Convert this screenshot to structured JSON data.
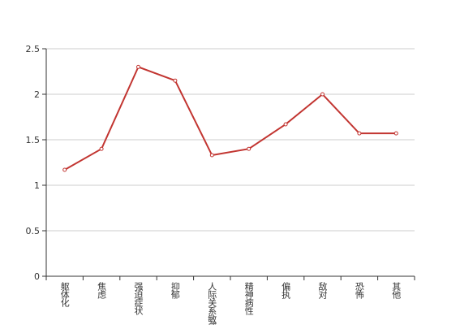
{
  "chart_data": {
    "type": "line",
    "categories": [
      "躯体化",
      "焦虑",
      "强迫症状",
      "抑郁",
      "人际关系敏感",
      "精神病性",
      "偏执",
      "敌对",
      "恐怖",
      "其他"
    ],
    "values": [
      1.17,
      1.4,
      2.3,
      2.15,
      1.33,
      1.4,
      1.67,
      2.0,
      1.57,
      1.57
    ],
    "color": "#c23531",
    "ylim": [
      0,
      2.5
    ],
    "yticks": [
      0,
      0.5,
      1,
      1.5,
      2,
      2.5
    ],
    "grid": true
  }
}
